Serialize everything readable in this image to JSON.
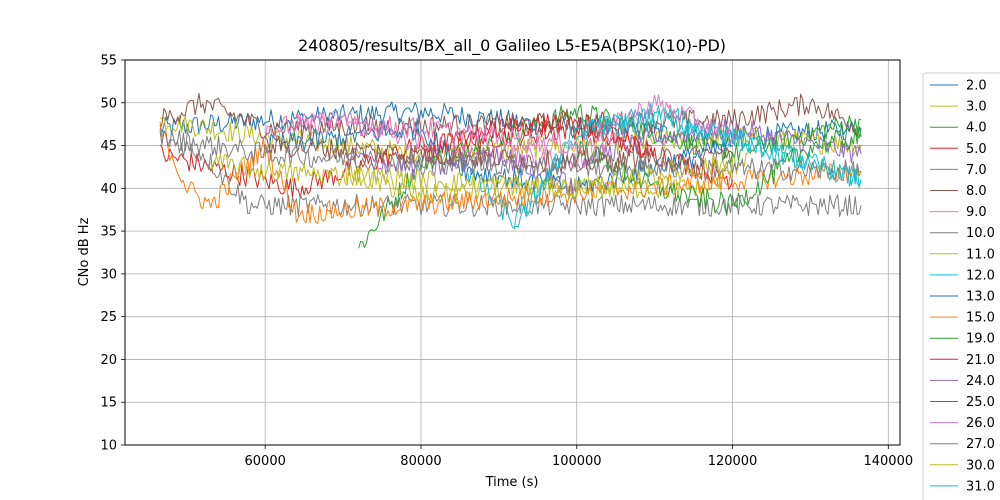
{
  "chart_data": {
    "type": "line",
    "title": "240805/results/BX_all_0 Galileo L5-E5A(BPSK(10)-PD)",
    "xlabel": "Time (s)",
    "ylabel": "CNo dB Hz",
    "xlim": [
      42000,
      141500
    ],
    "ylim": [
      10,
      55
    ],
    "xticks": [
      60000,
      80000,
      100000,
      120000,
      140000
    ],
    "yticks": [
      10,
      15,
      20,
      25,
      30,
      35,
      40,
      45,
      50,
      55
    ],
    "grid": true,
    "legend_position": "right, outside plot",
    "series": [
      {
        "name": "2.0",
        "color": "#1f77b4",
        "x": [
          46500,
          60000,
          80000,
          100000,
          120000,
          136500
        ],
        "y": [
          47,
          48,
          49,
          47,
          46,
          47
        ]
      },
      {
        "name": "3.0",
        "color": "#bcbd22",
        "x": [
          46500,
          60000,
          80000,
          100000,
          120000,
          136500
        ],
        "y": [
          48,
          46,
          44,
          45,
          46,
          45
        ]
      },
      {
        "name": "4.0",
        "color": "#2ca02c",
        "x": [
          72000,
          80000,
          100000,
          120000,
          136500
        ],
        "y": [
          33,
          43,
          49,
          44,
          48
        ]
      },
      {
        "name": "5.0",
        "color": "#d62728",
        "x": [
          46500,
          55000,
          64000,
          80000,
          100000,
          120000
        ],
        "y": [
          44,
          42,
          40,
          45,
          47,
          41
        ]
      },
      {
        "name": "7.0",
        "color": "#9467bd",
        "x": [
          100000,
          110000,
          120000,
          136500
        ],
        "y": [
          43,
          46,
          47,
          44
        ]
      },
      {
        "name": "8.0",
        "color": "#8c564b",
        "x": [
          46500,
          52000,
          60000,
          120000,
          130000,
          136500
        ],
        "y": [
          48,
          50,
          47,
          48,
          50,
          47
        ]
      },
      {
        "name": "9.0",
        "color": "#e377c2",
        "x": [
          60000,
          70000,
          80000,
          100000,
          110000
        ],
        "y": [
          47,
          48,
          45,
          43,
          49
        ]
      },
      {
        "name": "10.0",
        "color": "#7f7f7f",
        "x": [
          46500,
          52000,
          58000,
          136500
        ],
        "y": [
          46,
          44,
          38,
          38
        ]
      },
      {
        "name": "11.0",
        "color": "#bcbd22",
        "x": [
          70000,
          80000,
          90000,
          117000,
          122000
        ],
        "y": [
          42,
          39,
          40,
          40,
          44
        ]
      },
      {
        "name": "12.0",
        "color": "#17becf",
        "x": [
          86000,
          92000,
          100000,
          110000,
          120000,
          136500
        ],
        "y": [
          42,
          36,
          46,
          49,
          46,
          41
        ]
      },
      {
        "name": "13.0",
        "color": "#1f77b4",
        "x": [
          60000,
          70000,
          80000,
          86000,
          100000,
          120000
        ],
        "y": [
          45,
          46,
          47,
          42,
          40,
          45
        ]
      },
      {
        "name": "15.0",
        "color": "#ff7f0e",
        "x": [
          46500,
          50000,
          53000,
          60000,
          64000,
          136500
        ],
        "y": [
          47,
          40,
          38,
          45,
          37,
          42
        ]
      },
      {
        "name": "19.0",
        "color": "#2ca02c",
        "x": [
          100000,
          110000,
          120000,
          130000,
          136500
        ],
        "y": [
          45,
          40,
          38,
          45,
          46
        ]
      },
      {
        "name": "21.0",
        "color": "#d62728",
        "x": [
          80000,
          90000,
          100000,
          110000
        ],
        "y": [
          44,
          47,
          48,
          44
        ]
      },
      {
        "name": "24.0",
        "color": "#9467bd",
        "x": [
          70000,
          80000,
          90000,
          100000
        ],
        "y": [
          44,
          42,
          44,
          40
        ]
      },
      {
        "name": "25.0",
        "color": "#8c564b",
        "x": [
          60000,
          80000,
          100000,
          120000
        ],
        "y": [
          45,
          44,
          43,
          44
        ]
      },
      {
        "name": "26.0",
        "color": "#e377c2",
        "x": [
          64000,
          80000,
          100000,
          110000,
          120000
        ],
        "y": [
          48,
          47,
          45,
          50,
          46
        ]
      },
      {
        "name": "27.0",
        "color": "#7f7f7f",
        "x": [
          46500,
          60000,
          80000,
          136500
        ],
        "y": [
          46,
          44,
          43,
          42
        ]
      },
      {
        "name": "30.0",
        "color": "#bcbd22",
        "x": [
          53000,
          60000,
          80000,
          100000,
          120000
        ],
        "y": [
          43,
          42,
          41,
          40,
          43
        ]
      },
      {
        "name": "31.0",
        "color": "#17becf",
        "x": [
          92000,
          100000,
          110000,
          120000,
          136500
        ],
        "y": [
          35,
          47,
          48,
          46,
          41
        ]
      }
    ]
  }
}
